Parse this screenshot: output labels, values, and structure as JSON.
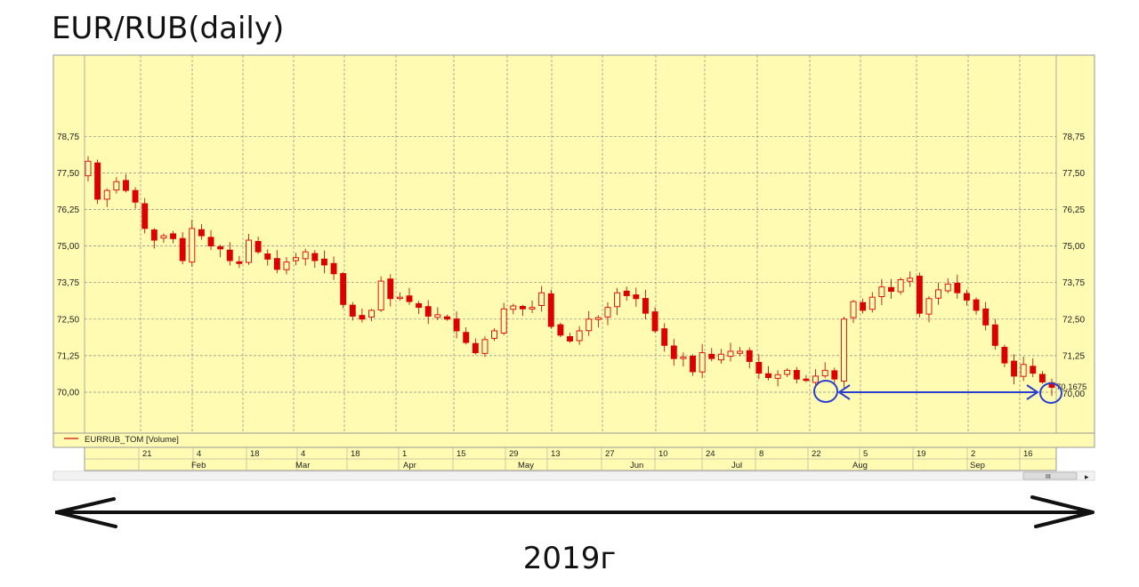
{
  "title": "EUR/RUB(daily)",
  "footer_label": "2019г",
  "legend_label": "EURRUB_TOM [Volume]",
  "scroll_thumb_label": "III",
  "scroll_right_arrow": "▸",
  "colors": {
    "background": "#fffbb2",
    "plot_border": "#9a9a9a",
    "grid": "#8a8a8a",
    "candle": "#dd0000",
    "wick": "#aa0000",
    "annotation": "#2a3fd0",
    "arrow": "#111111"
  },
  "chart_data": {
    "type": "candlestick",
    "title": "EUR/RUB(daily)",
    "series_name": "EURRUB_TOM [Volume]",
    "y_ticks": [
      "78,75",
      "77,50",
      "76,25",
      "75,00",
      "73,75",
      "72,50",
      "71,25",
      "70,00"
    ],
    "y_tick_values": [
      78.75,
      77.5,
      76.25,
      75.0,
      73.75,
      72.5,
      71.25,
      70.0
    ],
    "ylim": [
      68.0,
      79.1
    ],
    "last_value_label": "70,1675",
    "last_value": 70.1675,
    "x_day_labels": [
      "21",
      "4",
      "18",
      "4",
      "18",
      "1",
      "15",
      "29",
      "13",
      "27",
      "10",
      "24",
      "8",
      "22",
      "5",
      "19",
      "2",
      "16"
    ],
    "x_month_labels": [
      "Feb",
      "Mar",
      "Apr",
      "May",
      "Jun",
      "Jul",
      "Aug",
      "Sep"
    ],
    "grid": true,
    "close_path": [
      77.9,
      76.6,
      76.9,
      77.2,
      76.9,
      76.5,
      75.6,
      75.2,
      75.35,
      75.25,
      74.5,
      75.6,
      75.35,
      75.0,
      74.9,
      74.5,
      74.4,
      75.2,
      74.8,
      74.55,
      74.2,
      74.45,
      74.6,
      74.8,
      74.5,
      74.35,
      74.05,
      73.0,
      72.6,
      72.5,
      72.8,
      73.8,
      73.2,
      73.25,
      73.1,
      72.9,
      72.6,
      72.65,
      72.5,
      72.1,
      71.7,
      71.35,
      71.8,
      72.1,
      72.85,
      72.95,
      72.85,
      72.9,
      73.4,
      72.25,
      71.95,
      71.75,
      72.1,
      72.5,
      72.55,
      72.9,
      73.4,
      73.3,
      73.2,
      72.7,
      72.1,
      71.6,
      71.15,
      71.2,
      70.7,
      71.35,
      71.15,
      71.3,
      71.4,
      71.4,
      71.05,
      70.65,
      70.5,
      70.6,
      70.75,
      70.45,
      70.4,
      70.55,
      70.75,
      70.45,
      72.5,
      73.1,
      72.8,
      73.25,
      73.6,
      73.45,
      73.85,
      73.9,
      72.7,
      73.2,
      73.5,
      73.7,
      73.4,
      73.15,
      72.8,
      72.3,
      71.6,
      71.0,
      70.55,
      70.95,
      70.65,
      70.35,
      70.1675
    ],
    "annotations": {
      "circles": 2,
      "range_arrow": "double-headed, from first marked low to last close",
      "period_arrow": "double-headed, spans the whole chart"
    }
  }
}
